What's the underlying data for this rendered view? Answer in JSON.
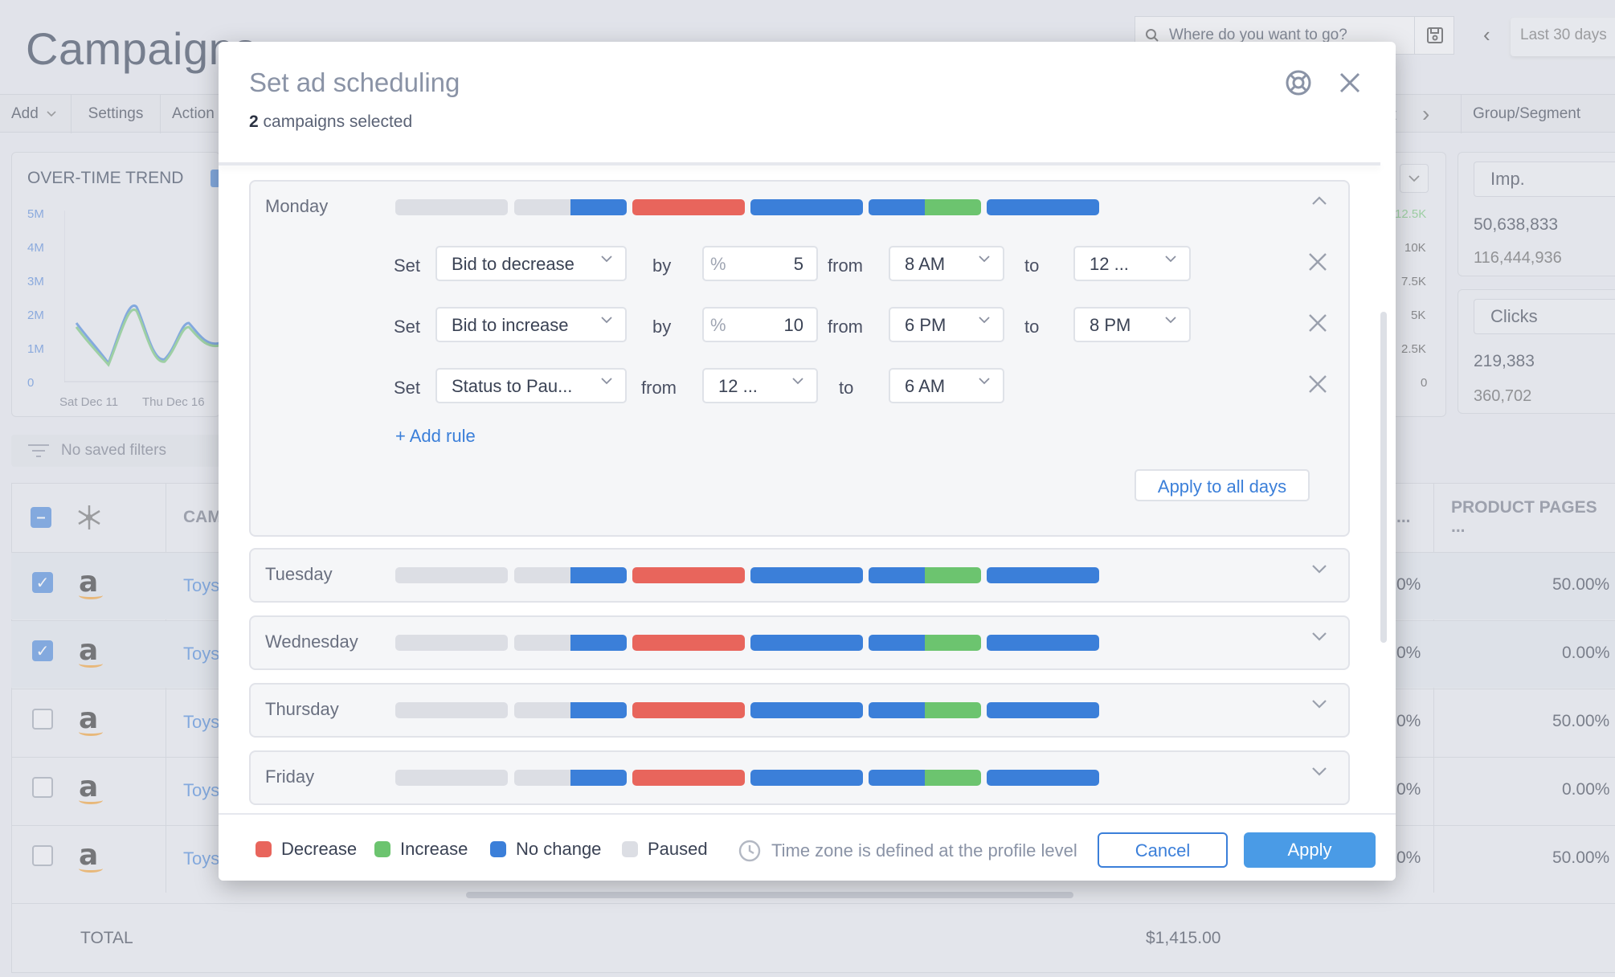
{
  "app": {
    "page_title": "Campaigns",
    "search_placeholder": "Where do you want to go?",
    "date_range": "Last 30 days",
    "toolbar": {
      "add": "Add",
      "settings": "Settings",
      "actions": "Action",
      "group_segment": "Group/Segment"
    },
    "trend": {
      "title": "OVER-TIME TREND",
      "y_ticks": [
        "5M",
        "4M",
        "3M",
        "2M",
        "1M",
        "0"
      ],
      "x_ticks": [
        "Sat Dec 11",
        "Thu Dec 16"
      ],
      "right_ticks": [
        "12.5K",
        "10K",
        "7.5K",
        "5K",
        "2.5K",
        "0"
      ]
    },
    "metrics": [
      {
        "name": "Imp.",
        "value": "50,638,833",
        "sub": "116,444,936"
      },
      {
        "name": "Clicks",
        "value": "219,383",
        "sub": "360,702"
      }
    ],
    "filter_text": "No saved filters",
    "table": {
      "col_campaign": "CAM",
      "col_product_pages": "PRODUCT PAGES ...",
      "col_mid": "...",
      "rows": [
        {
          "checked": true,
          "name": "Toys",
          "mid": "0%",
          "pct": "50.00%"
        },
        {
          "checked": true,
          "name": "Toys",
          "mid": "0%",
          "pct": "0.00%"
        },
        {
          "checked": false,
          "name": "Toys",
          "mid": "0%",
          "pct": "50.00%"
        },
        {
          "checked": false,
          "name": "Toys",
          "mid": "0%",
          "pct": "0.00%"
        },
        {
          "checked": false,
          "name": "Toys",
          "mid": "0%",
          "pct": "50.00%"
        }
      ],
      "total_label": "TOTAL",
      "total_value": "$1,415.00"
    }
  },
  "modal": {
    "title": "Set ad scheduling",
    "selected_count": "2",
    "selected_text": "campaigns selected",
    "colors": {
      "decrease": "#e8655c",
      "increase": "#6cc46f",
      "no_change": "#3b7fd9",
      "paused": "#dcdee4"
    },
    "days": [
      {
        "name": "Monday",
        "expanded": true
      },
      {
        "name": "Tuesday",
        "expanded": false
      },
      {
        "name": "Wednesday",
        "expanded": false
      },
      {
        "name": "Thursday",
        "expanded": false
      },
      {
        "name": "Friday",
        "expanded": false
      }
    ],
    "rules": [
      {
        "set": "Set",
        "action": "Bid to decrease",
        "by": "by",
        "value": "5",
        "from": "from",
        "start": "8 AM",
        "to": "to",
        "end": "12 ..."
      },
      {
        "set": "Set",
        "action": "Bid to increase",
        "by": "by",
        "value": "10",
        "from": "from",
        "start": "6 PM",
        "to": "to",
        "end": "8 PM"
      },
      {
        "set": "Set",
        "action": "Status to Pau...",
        "from": "from",
        "start": "12 ...",
        "to": "to",
        "end": "6 AM"
      }
    ],
    "add_rule": "+ Add rule",
    "apply_all": "Apply to all days",
    "legend": {
      "decrease": "Decrease",
      "increase": "Increase",
      "no_change": "No change",
      "paused": "Paused"
    },
    "timezone_note": "Time zone is defined at the profile level",
    "cancel": "Cancel",
    "apply": "Apply"
  }
}
